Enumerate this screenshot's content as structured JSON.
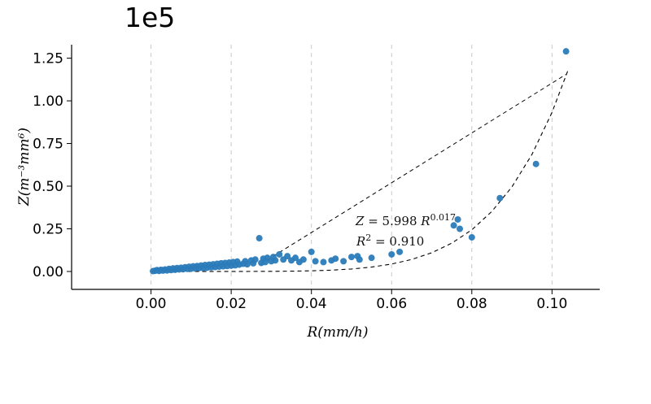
{
  "figure": {
    "background": "#ffffff"
  },
  "chart_data": {
    "type": "scatter",
    "title": "",
    "xlabel": "R(mm/h)",
    "ylabel": "Z(m⁻³mm⁶)",
    "y_offset_label": "1e5",
    "xlim": [
      -0.0198,
      0.1119
    ],
    "ylim": [
      -0.105,
      1.329
    ],
    "x_ticks": [
      0,
      0.02,
      0.04,
      0.06,
      0.08,
      0.1
    ],
    "x_tick_labels": [
      "0.00",
      "0.02",
      "0.04",
      "0.06",
      "0.08",
      "0.10"
    ],
    "y_ticks": [
      0,
      0.25,
      0.5,
      0.75,
      1.0,
      1.25
    ],
    "y_tick_labels": [
      "0.00",
      "0.25",
      "0.50",
      "0.75",
      "1.00",
      "1.25"
    ],
    "grid": "vertical-dashed",
    "legend": "none",
    "point_color": "#2b7bb9",
    "y_unit_scale": "1e5",
    "points": [
      [
        0.0005,
        0.002
      ],
      [
        0.001,
        0.004
      ],
      [
        0.0015,
        0.008
      ],
      [
        0.002,
        0.003
      ],
      [
        0.0025,
        0.01
      ],
      [
        0.003,
        0.005
      ],
      [
        0.0035,
        0.012
      ],
      [
        0.004,
        0.006
      ],
      [
        0.0045,
        0.015
      ],
      [
        0.005,
        0.008
      ],
      [
        0.0055,
        0.018
      ],
      [
        0.006,
        0.01
      ],
      [
        0.0065,
        0.02
      ],
      [
        0.007,
        0.012
      ],
      [
        0.0075,
        0.022
      ],
      [
        0.008,
        0.013
      ],
      [
        0.0085,
        0.025
      ],
      [
        0.009,
        0.015
      ],
      [
        0.0095,
        0.028
      ],
      [
        0.01,
        0.016
      ],
      [
        0.0105,
        0.03
      ],
      [
        0.011,
        0.018
      ],
      [
        0.0115,
        0.032
      ],
      [
        0.012,
        0.02
      ],
      [
        0.0125,
        0.035
      ],
      [
        0.013,
        0.02
      ],
      [
        0.0135,
        0.038
      ],
      [
        0.014,
        0.022
      ],
      [
        0.0145,
        0.04
      ],
      [
        0.015,
        0.024
      ],
      [
        0.0155,
        0.042
      ],
      [
        0.016,
        0.026
      ],
      [
        0.0165,
        0.045
      ],
      [
        0.017,
        0.028
      ],
      [
        0.0175,
        0.048
      ],
      [
        0.018,
        0.03
      ],
      [
        0.0185,
        0.05
      ],
      [
        0.019,
        0.032
      ],
      [
        0.0195,
        0.052
      ],
      [
        0.02,
        0.034
      ],
      [
        0.0205,
        0.055
      ],
      [
        0.021,
        0.036
      ],
      [
        0.0215,
        0.058
      ],
      [
        0.022,
        0.04
      ],
      [
        0.023,
        0.045
      ],
      [
        0.0235,
        0.06
      ],
      [
        0.024,
        0.042
      ],
      [
        0.025,
        0.065
      ],
      [
        0.0255,
        0.048
      ],
      [
        0.026,
        0.07
      ],
      [
        0.027,
        0.195
      ],
      [
        0.0275,
        0.05
      ],
      [
        0.028,
        0.075
      ],
      [
        0.0285,
        0.055
      ],
      [
        0.029,
        0.08
      ],
      [
        0.03,
        0.06
      ],
      [
        0.0305,
        0.085
      ],
      [
        0.031,
        0.065
      ],
      [
        0.032,
        0.1
      ],
      [
        0.033,
        0.07
      ],
      [
        0.034,
        0.09
      ],
      [
        0.035,
        0.065
      ],
      [
        0.036,
        0.08
      ],
      [
        0.037,
        0.055
      ],
      [
        0.038,
        0.07
      ],
      [
        0.04,
        0.115
      ],
      [
        0.041,
        0.06
      ],
      [
        0.043,
        0.055
      ],
      [
        0.045,
        0.065
      ],
      [
        0.046,
        0.075
      ],
      [
        0.048,
        0.06
      ],
      [
        0.05,
        0.085
      ],
      [
        0.0515,
        0.09
      ],
      [
        0.052,
        0.07
      ],
      [
        0.055,
        0.08
      ],
      [
        0.06,
        0.1
      ],
      [
        0.062,
        0.115
      ],
      [
        0.0755,
        0.27
      ],
      [
        0.0765,
        0.305
      ],
      [
        0.077,
        0.25
      ],
      [
        0.08,
        0.2
      ],
      [
        0.087,
        0.43
      ],
      [
        0.096,
        0.63
      ],
      [
        0.1035,
        1.29
      ]
    ],
    "fit_curve": [
      [
        0,
        0
      ],
      [
        0.01,
        0.0
      ],
      [
        0.02,
        0.0001
      ],
      [
        0.03,
        0.0007
      ],
      [
        0.035,
        0.0018
      ],
      [
        0.04,
        0.0038
      ],
      [
        0.045,
        0.0077
      ],
      [
        0.05,
        0.0146
      ],
      [
        0.055,
        0.0258
      ],
      [
        0.06,
        0.0435
      ],
      [
        0.065,
        0.0703
      ],
      [
        0.07,
        0.1096
      ],
      [
        0.075,
        0.166
      ],
      [
        0.08,
        0.244
      ],
      [
        0.085,
        0.352
      ],
      [
        0.09,
        0.4955
      ],
      [
        0.095,
        0.686
      ],
      [
        0.1,
        0.9324
      ],
      [
        0.104,
        1.18
      ]
    ],
    "secant_line": [
      [
        0.0273,
        0.043
      ],
      [
        0.1035,
        1.155
      ]
    ],
    "annotation": {
      "z_var": "Z",
      "mid": " = 5.998 ",
      "r_var": "R",
      "exponent": "0.017",
      "r2_var": "R",
      "r2_sup": "2",
      "r2_rest": " = 0.910"
    }
  }
}
